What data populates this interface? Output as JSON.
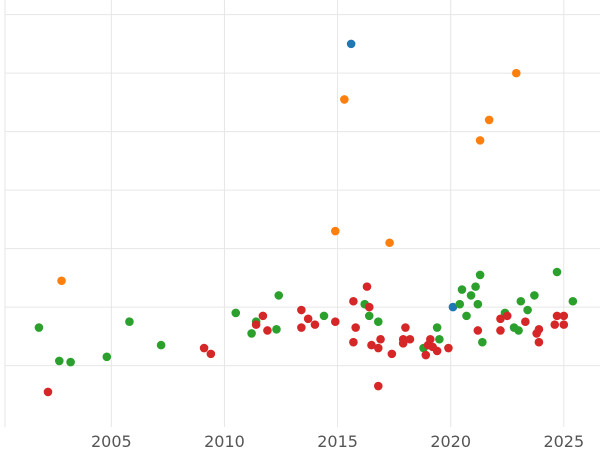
{
  "chart_data": {
    "type": "scatter",
    "title": "",
    "xlabel": "",
    "ylabel": "",
    "xlim": [
      2000.3,
      2026.6
    ],
    "ylim": [
      -1.05,
      6.25
    ],
    "grid": true,
    "x_ticks": [
      2005,
      2010,
      2015,
      2020,
      2025
    ],
    "y_gridlines": [
      0,
      1,
      2,
      3,
      4,
      5,
      6
    ],
    "series": [
      {
        "color": "#1f77b4",
        "points": [
          {
            "x": 2015.6,
            "y": 5.5
          },
          {
            "x": 2020.1,
            "y": 1.0
          }
        ]
      },
      {
        "color": "#ff7f0e",
        "points": [
          {
            "x": 2002.8,
            "y": 1.45
          },
          {
            "x": 2014.9,
            "y": 2.3
          },
          {
            "x": 2015.3,
            "y": 4.55
          },
          {
            "x": 2017.3,
            "y": 2.1
          },
          {
            "x": 2021.3,
            "y": 3.85
          },
          {
            "x": 2021.7,
            "y": 4.2
          },
          {
            "x": 2022.9,
            "y": 5.0
          }
        ]
      },
      {
        "color": "#2ca02c",
        "points": [
          {
            "x": 2001.8,
            "y": 0.65
          },
          {
            "x": 2002.7,
            "y": 0.08
          },
          {
            "x": 2003.2,
            "y": 0.06
          },
          {
            "x": 2004.8,
            "y": 0.15
          },
          {
            "x": 2005.8,
            "y": 0.75
          },
          {
            "x": 2007.2,
            "y": 0.35
          },
          {
            "x": 2010.5,
            "y": 0.9
          },
          {
            "x": 2011.2,
            "y": 0.55
          },
          {
            "x": 2011.4,
            "y": 0.75
          },
          {
            "x": 2012.3,
            "y": 0.62
          },
          {
            "x": 2012.4,
            "y": 1.2
          },
          {
            "x": 2014.4,
            "y": 0.85
          },
          {
            "x": 2016.2,
            "y": 1.05
          },
          {
            "x": 2016.4,
            "y": 0.85
          },
          {
            "x": 2016.8,
            "y": 0.75
          },
          {
            "x": 2018.8,
            "y": 0.3
          },
          {
            "x": 2019.4,
            "y": 0.65
          },
          {
            "x": 2019.5,
            "y": 0.45
          },
          {
            "x": 2020.4,
            "y": 1.05
          },
          {
            "x": 2020.5,
            "y": 1.3
          },
          {
            "x": 2020.7,
            "y": 0.85
          },
          {
            "x": 2020.9,
            "y": 1.2
          },
          {
            "x": 2021.1,
            "y": 1.35
          },
          {
            "x": 2021.2,
            "y": 1.05
          },
          {
            "x": 2021.3,
            "y": 1.55
          },
          {
            "x": 2021.4,
            "y": 0.4
          },
          {
            "x": 2022.4,
            "y": 0.9
          },
          {
            "x": 2022.8,
            "y": 0.65
          },
          {
            "x": 2023.0,
            "y": 0.6
          },
          {
            "x": 2023.1,
            "y": 1.1
          },
          {
            "x": 2023.4,
            "y": 0.95
          },
          {
            "x": 2023.7,
            "y": 1.2
          },
          {
            "x": 2024.7,
            "y": 1.6
          },
          {
            "x": 2025.4,
            "y": 1.1
          }
        ]
      },
      {
        "color": "#d62728",
        "points": [
          {
            "x": 2002.2,
            "y": -0.45
          },
          {
            "x": 2009.1,
            "y": 0.3
          },
          {
            "x": 2009.4,
            "y": 0.2
          },
          {
            "x": 2011.4,
            "y": 0.7
          },
          {
            "x": 2011.7,
            "y": 0.85
          },
          {
            "x": 2011.9,
            "y": 0.6
          },
          {
            "x": 2013.4,
            "y": 0.95
          },
          {
            "x": 2013.4,
            "y": 0.65
          },
          {
            "x": 2013.7,
            "y": 0.8
          },
          {
            "x": 2014.0,
            "y": 0.7
          },
          {
            "x": 2014.9,
            "y": 0.75
          },
          {
            "x": 2015.7,
            "y": 1.1
          },
          {
            "x": 2015.7,
            "y": 0.4
          },
          {
            "x": 2015.8,
            "y": 0.65
          },
          {
            "x": 2016.3,
            "y": 1.35
          },
          {
            "x": 2016.4,
            "y": 1.0
          },
          {
            "x": 2016.5,
            "y": 0.35
          },
          {
            "x": 2016.8,
            "y": -0.35
          },
          {
            "x": 2016.8,
            "y": 0.3
          },
          {
            "x": 2016.9,
            "y": 0.45
          },
          {
            "x": 2017.4,
            "y": 0.2
          },
          {
            "x": 2017.9,
            "y": 0.45
          },
          {
            "x": 2017.9,
            "y": 0.38
          },
          {
            "x": 2018.0,
            "y": 0.65
          },
          {
            "x": 2018.2,
            "y": 0.45
          },
          {
            "x": 2018.9,
            "y": 0.18
          },
          {
            "x": 2019.0,
            "y": 0.35
          },
          {
            "x": 2019.1,
            "y": 0.45
          },
          {
            "x": 2019.2,
            "y": 0.32
          },
          {
            "x": 2019.4,
            "y": 0.25
          },
          {
            "x": 2019.9,
            "y": 0.3
          },
          {
            "x": 2021.2,
            "y": 0.6
          },
          {
            "x": 2022.2,
            "y": 0.8
          },
          {
            "x": 2022.2,
            "y": 0.6
          },
          {
            "x": 2022.5,
            "y": 0.85
          },
          {
            "x": 2023.3,
            "y": 0.75
          },
          {
            "x": 2023.8,
            "y": 0.55
          },
          {
            "x": 2023.9,
            "y": 0.62
          },
          {
            "x": 2023.9,
            "y": 0.4
          },
          {
            "x": 2024.6,
            "y": 0.7
          },
          {
            "x": 2024.7,
            "y": 0.85
          },
          {
            "x": 2025.0,
            "y": 0.85
          },
          {
            "x": 2025.0,
            "y": 0.7
          }
        ]
      }
    ]
  }
}
